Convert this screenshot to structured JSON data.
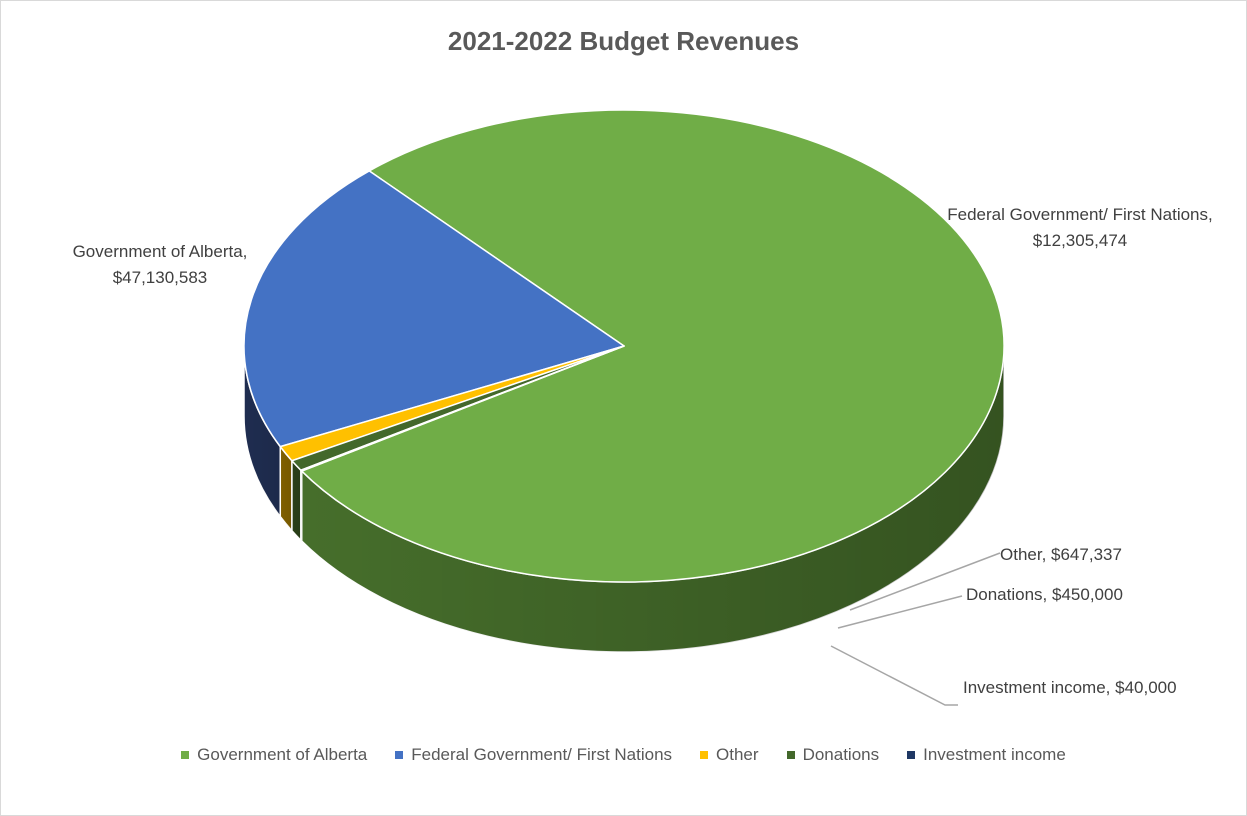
{
  "chart_data": {
    "type": "pie",
    "title": "2021-2022 Budget Revenues",
    "three_d": true,
    "legend_position": "bottom",
    "series": [
      {
        "name": "Government of Alberta",
        "value": 47130583,
        "label": "Government of Alberta, $47,130,583",
        "label_lines": [
          "Government of Alberta,",
          "$47,130,583"
        ],
        "color": "#70AD47",
        "side_color": "#466E2B"
      },
      {
        "name": "Federal Government/ First Nations",
        "value": 12305474,
        "label": "Federal Government/ First Nations, $12,305,474",
        "label_lines": [
          "Federal Government/ First Nations,",
          "$12,305,474"
        ],
        "color": "#4472C4",
        "side_color": "#1F2D50"
      },
      {
        "name": "Other",
        "value": 647337,
        "label": "Other,  $647,337",
        "label_lines": [
          "Other,  $647,337"
        ],
        "color": "#FFC000",
        "side_color": "#7F5F00"
      },
      {
        "name": "Donations",
        "value": 450000,
        "label": "Donations,  $450,000",
        "label_lines": [
          "Donations,  $450,000"
        ],
        "color": "#43682B",
        "side_color": "#2A4019"
      },
      {
        "name": "Investment income",
        "value": 40000,
        "label": "Investment income,  $40,000",
        "label_lines": [
          "Investment income,  $40,000"
        ],
        "color": "#1F3864",
        "side_color": "#121F38"
      }
    ]
  }
}
